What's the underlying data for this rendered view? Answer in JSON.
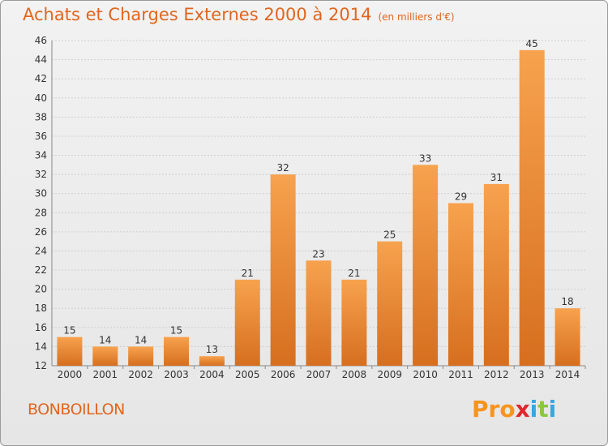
{
  "title": "Achats et Charges Externes 2000 à 2014",
  "subtitle": "(en milliers d'€)",
  "place": "BONBOILLON",
  "logo": {
    "letters": [
      "P",
      "r",
      "o",
      "x",
      "i",
      "t",
      "i"
    ],
    "colors": [
      "#f7941d",
      "#f7941d",
      "#f7941d",
      "#e3262e",
      "#35a8e0",
      "#8cc63f",
      "#35a8e0"
    ]
  },
  "chart_data": {
    "type": "bar",
    "categories": [
      "2000",
      "2001",
      "2002",
      "2003",
      "2004",
      "2005",
      "2006",
      "2007",
      "2008",
      "2009",
      "2010",
      "2011",
      "2012",
      "2013",
      "2014"
    ],
    "values": [
      15,
      14,
      14,
      15,
      13,
      21,
      32,
      23,
      21,
      25,
      33,
      29,
      31,
      45,
      18
    ],
    "ylim": [
      12,
      46
    ],
    "yticks": [
      12,
      14,
      16,
      18,
      20,
      22,
      24,
      26,
      28,
      30,
      32,
      34,
      36,
      38,
      40,
      42,
      44,
      46
    ],
    "grid": true,
    "colors": {
      "bar_light": "#f7a24e",
      "bar_dark": "#d66f1f",
      "text": "#333333",
      "title": "#e0661f"
    }
  }
}
